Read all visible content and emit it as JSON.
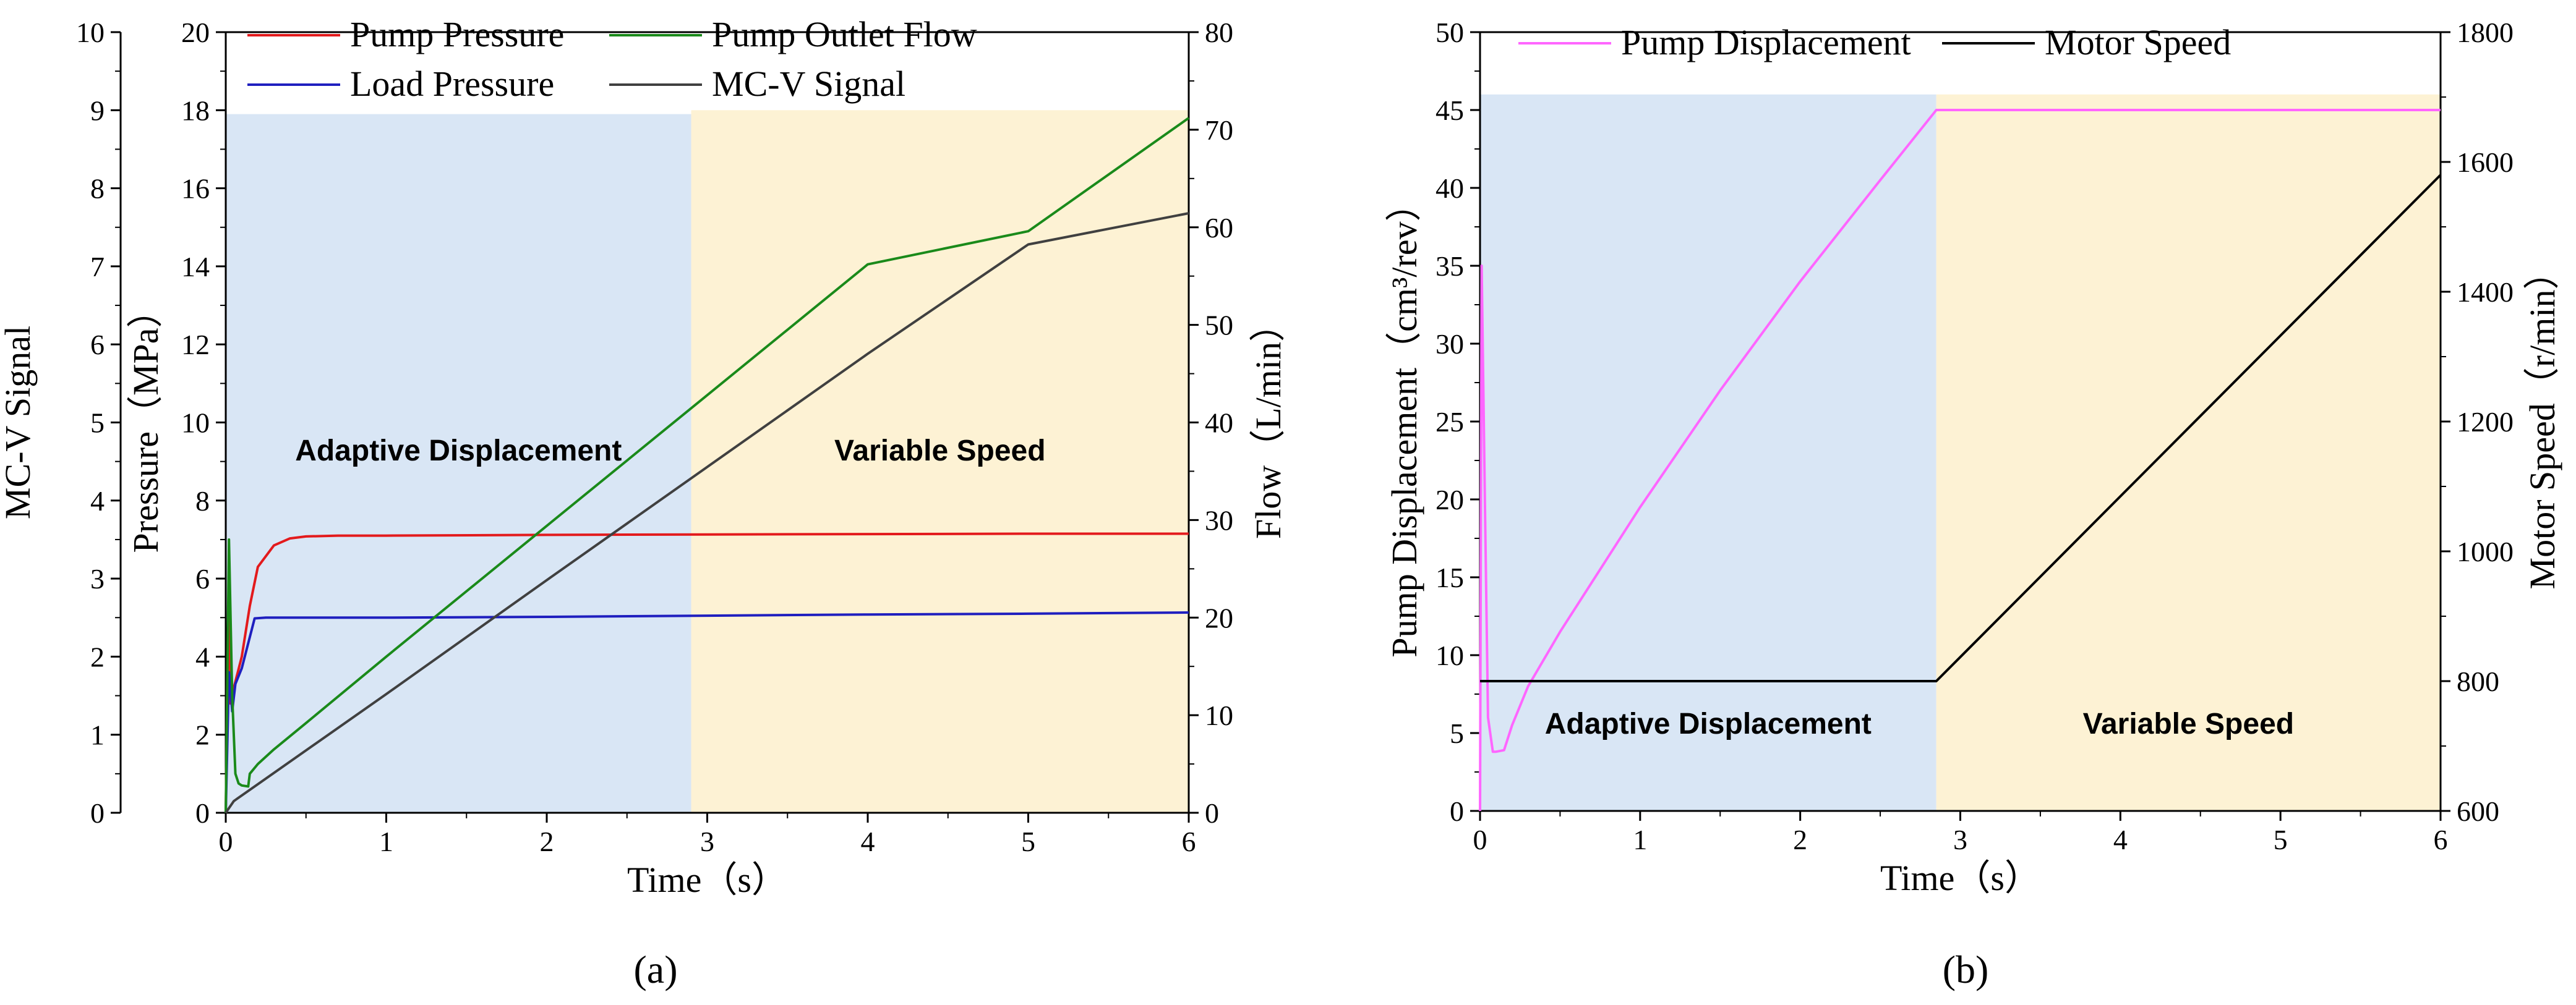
{
  "colors": {
    "pump_pressure": "#e31a1c",
    "load_pressure": "#1f1fbf",
    "pump_outlet_flow": "#1a8a1a",
    "mcv_signal": "#404040",
    "pump_displacement": "#ff66ff",
    "motor_speed": "#000000",
    "adaptive_bg": "#d9e6f5",
    "variable_bg": "#fdf2d4"
  },
  "chart_data": [
    {
      "id": "a",
      "type": "line",
      "panel_label": "(a)",
      "xlabel": "Time（s）",
      "xlim": [
        0,
        6
      ],
      "xticks": [
        0,
        1,
        2,
        3,
        4,
        5,
        6
      ],
      "axes": {
        "mcv": {
          "label": "MC-V Signal",
          "lim": [
            0,
            10
          ],
          "ticks": [
            0,
            1,
            2,
            3,
            4,
            5,
            6,
            7,
            8,
            9,
            10
          ]
        },
        "pressure": {
          "label": "Pressure（MPa）",
          "lim": [
            0,
            20
          ],
          "ticks": [
            0,
            2,
            4,
            6,
            8,
            10,
            12,
            14,
            16,
            18,
            20
          ]
        },
        "flow": {
          "label": "Flow（L/min）",
          "lim": [
            0,
            80
          ],
          "ticks": [
            0,
            10,
            20,
            30,
            40,
            50,
            60,
            70,
            80
          ]
        }
      },
      "regions": [
        {
          "label": "Adaptive Displacement",
          "x": [
            0,
            2.9
          ],
          "top": 17.9,
          "color_key": "adaptive_bg"
        },
        {
          "label": "Variable Speed",
          "x": [
            2.9,
            6
          ],
          "top": 18.0,
          "color_key": "variable_bg"
        }
      ],
      "legend": [
        "Pump Pressure",
        "Pump Outlet Flow",
        "Load Pressure",
        "MC-V Signal"
      ],
      "series": [
        {
          "name": "Pump Pressure",
          "axis": "pressure",
          "color_key": "pump_pressure",
          "x": [
            0,
            0.02,
            0.03,
            0.05,
            0.1,
            0.15,
            0.2,
            0.3,
            0.4,
            0.5,
            0.7,
            1,
            2,
            3,
            4,
            5,
            6
          ],
          "y": [
            0,
            6.2,
            2.8,
            3.2,
            4.0,
            5.3,
            6.3,
            6.85,
            7.03,
            7.08,
            7.1,
            7.1,
            7.12,
            7.13,
            7.14,
            7.15,
            7.15
          ]
        },
        {
          "name": "Load Pressure",
          "axis": "pressure",
          "color_key": "load_pressure",
          "x": [
            0,
            0.02,
            0.04,
            0.06,
            0.1,
            0.15,
            0.18,
            0.25,
            1,
            2,
            3,
            4,
            5,
            6
          ],
          "y": [
            0,
            3.6,
            2.6,
            3.3,
            3.7,
            4.5,
            4.98,
            5.0,
            5.0,
            5.02,
            5.05,
            5.08,
            5.1,
            5.13
          ]
        },
        {
          "name": "Pump Outlet Flow",
          "axis": "flow",
          "color_key": "pump_outlet_flow",
          "x": [
            0,
            0.02,
            0.04,
            0.06,
            0.08,
            0.1,
            0.14,
            0.15,
            0.2,
            0.3,
            0.5,
            1,
            2,
            3,
            4,
            5,
            6
          ],
          "y": [
            0,
            28,
            12,
            4,
            3,
            2.8,
            2.7,
            4,
            5,
            6.5,
            9.2,
            16,
            29.4,
            42.8,
            56.2,
            59.6,
            71.2
          ]
        },
        {
          "name": "MC-V Signal",
          "axis": "mcv",
          "color_key": "mcv_signal",
          "x": [
            0,
            0.05,
            1,
            2,
            3,
            4,
            5,
            6
          ],
          "y": [
            0,
            0.15,
            1.52,
            2.98,
            4.43,
            5.88,
            7.28,
            7.68
          ]
        }
      ]
    },
    {
      "id": "b",
      "type": "line",
      "panel_label": "(b)",
      "xlabel": "Time（s）",
      "xlim": [
        0,
        6
      ],
      "xticks": [
        0,
        1,
        2,
        3,
        4,
        5,
        6
      ],
      "axes": {
        "displacement": {
          "label": "Pump Displacement（cm³/rev）",
          "lim": [
            0,
            50
          ],
          "ticks": [
            0,
            5,
            10,
            15,
            20,
            25,
            30,
            35,
            40,
            45,
            50
          ]
        },
        "speed": {
          "label": "Motor Speed（r/min）",
          "lim": [
            600,
            1800
          ],
          "ticks": [
            600,
            800,
            1000,
            1200,
            1400,
            1600,
            1800
          ]
        }
      },
      "regions": [
        {
          "label": "Adaptive Displacement",
          "x": [
            0,
            2.85
          ],
          "top": 46,
          "color_key": "adaptive_bg"
        },
        {
          "label": "Variable Speed",
          "x": [
            2.85,
            6
          ],
          "top": 46,
          "color_key": "variable_bg"
        }
      ],
      "legend": [
        "Pump Displacement",
        "Motor Speed"
      ],
      "series": [
        {
          "name": "Pump Displacement",
          "axis": "displacement",
          "color_key": "pump_displacement",
          "x": [
            0,
            0.01,
            0.03,
            0.05,
            0.08,
            0.1,
            0.15,
            0.2,
            0.3,
            0.5,
            1,
            1.5,
            2,
            2.5,
            2.85,
            3,
            4,
            5,
            6
          ],
          "y": [
            0,
            35,
            20,
            6,
            3.8,
            3.8,
            3.9,
            5.5,
            8.0,
            11.5,
            19.5,
            27,
            34,
            40.5,
            45,
            45,
            45,
            45,
            45
          ]
        },
        {
          "name": "Motor Speed",
          "axis": "speed",
          "color_key": "motor_speed",
          "x": [
            0,
            2.85,
            6
          ],
          "y": [
            800,
            800,
            1580
          ]
        }
      ]
    }
  ]
}
